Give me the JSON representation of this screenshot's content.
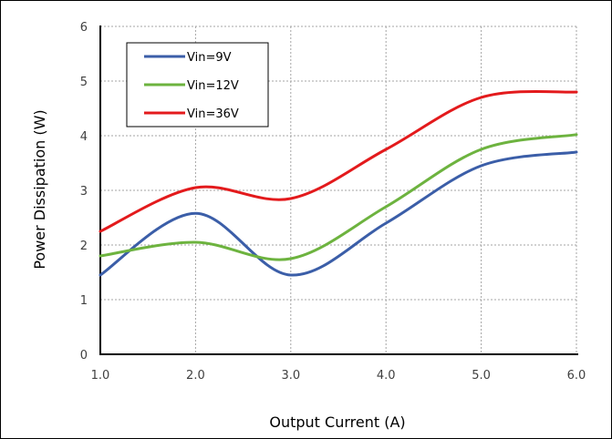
{
  "chart_data": {
    "type": "line",
    "title": "",
    "xlabel": "Output Current (A)",
    "ylabel": "Power Dissipation (W)",
    "xlim": [
      1.0,
      6.0
    ],
    "ylim": [
      0,
      6
    ],
    "x_ticks": [
      "1.0",
      "2.0",
      "3.0",
      "4.0",
      "5.0",
      "6.0"
    ],
    "y_ticks": [
      "0",
      "1",
      "2",
      "3",
      "4",
      "5",
      "6"
    ],
    "grid": true,
    "legend_position": "top-left",
    "x": [
      1.0,
      2.0,
      3.0,
      4.0,
      5.0,
      6.0
    ],
    "series": [
      {
        "name": "Vin=9V",
        "color": "#3b5ea8",
        "values": [
          1.45,
          2.58,
          1.45,
          2.4,
          3.45,
          3.7
        ]
      },
      {
        "name": "Vin=12V",
        "color": "#6db33f",
        "values": [
          1.8,
          2.05,
          1.75,
          2.7,
          3.75,
          4.02
        ]
      },
      {
        "name": "Vin=36V",
        "color": "#e31a1c",
        "values": [
          2.25,
          3.05,
          2.85,
          3.75,
          4.7,
          4.8
        ]
      }
    ]
  }
}
